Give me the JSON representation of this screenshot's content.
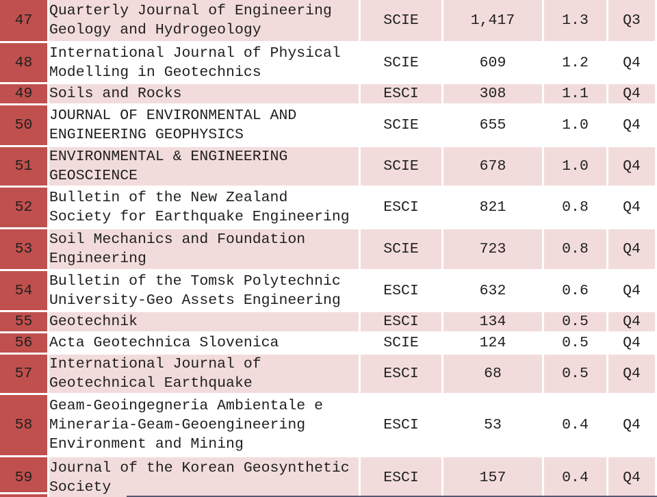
{
  "chart_data": {
    "type": "table",
    "columns": [
      "rank",
      "journal",
      "index",
      "cites",
      "impact",
      "quartile"
    ],
    "rows": [
      {
        "rank": "47",
        "journal": "Quarterly Journal of Engineering\nGeology and Hydrogeology",
        "index": "SCIE",
        "cites": "1,417",
        "impact": "1.3",
        "quartile": "Q3"
      },
      {
        "rank": "48",
        "journal": "International Journal of Physical\nModelling in Geotechnics",
        "index": "SCIE",
        "cites": "609",
        "impact": "1.2",
        "quartile": "Q4"
      },
      {
        "rank": "49",
        "journal": "Soils and Rocks",
        "index": "ESCI",
        "cites": "308",
        "impact": "1.1",
        "quartile": "Q4"
      },
      {
        "rank": "50",
        "journal": "JOURNAL OF ENVIRONMENTAL AND\nENGINEERING GEOPHYSICS",
        "index": "SCIE",
        "cites": "655",
        "impact": "1.0",
        "quartile": "Q4"
      },
      {
        "rank": "51",
        "journal": "ENVIRONMENTAL & ENGINEERING\nGEOSCIENCE",
        "index": "SCIE",
        "cites": "678",
        "impact": "1.0",
        "quartile": "Q4"
      },
      {
        "rank": "52",
        "journal": "Bulletin of the New Zealand\nSociety for Earthquake Engineering",
        "index": "ESCI",
        "cites": "821",
        "impact": "0.8",
        "quartile": "Q4"
      },
      {
        "rank": "53",
        "journal": "Soil Mechanics and Foundation\nEngineering",
        "index": "SCIE",
        "cites": "723",
        "impact": "0.8",
        "quartile": "Q4"
      },
      {
        "rank": "54",
        "journal": "Bulletin of the Tomsk Polytechnic\nUniversity-Geo Assets Engineering",
        "index": "ESCI",
        "cites": "632",
        "impact": "0.6",
        "quartile": "Q4"
      },
      {
        "rank": "55",
        "journal": "Geotechnik",
        "index": "ESCI",
        "cites": "134",
        "impact": "0.5",
        "quartile": "Q4"
      },
      {
        "rank": "56",
        "journal": "Acta Geotechnica Slovenica",
        "index": "SCIE",
        "cites": "124",
        "impact": "0.5",
        "quartile": "Q4"
      },
      {
        "rank": "57",
        "journal": "International Journal of\nGeotechnical Earthquake",
        "index": "ESCI",
        "cites": "68",
        "impact": "0.5",
        "quartile": "Q4"
      },
      {
        "rank": "58",
        "journal": "Geam-Geoingegneria Ambientale e\nMineraria-Geam-Geoengineering\nEnvironment and Mining",
        "index": "ESCI",
        "cites": "53",
        "impact": "0.4",
        "quartile": "Q4"
      },
      {
        "rank": "59",
        "journal": "Journal of the Korean Geosynthetic\nSociety",
        "index": "ESCI",
        "cites": "157",
        "impact": "0.4",
        "quartile": "Q4"
      }
    ]
  },
  "colors": {
    "rank_bg": "#c0504d",
    "rank_text": "#f3efe4",
    "row_pink": "#f2dcdb",
    "row_white": "#ffffff",
    "cell_text": "#1f1f1f",
    "grid": "#ffffff",
    "bottom_line": "#3a3f5c"
  }
}
